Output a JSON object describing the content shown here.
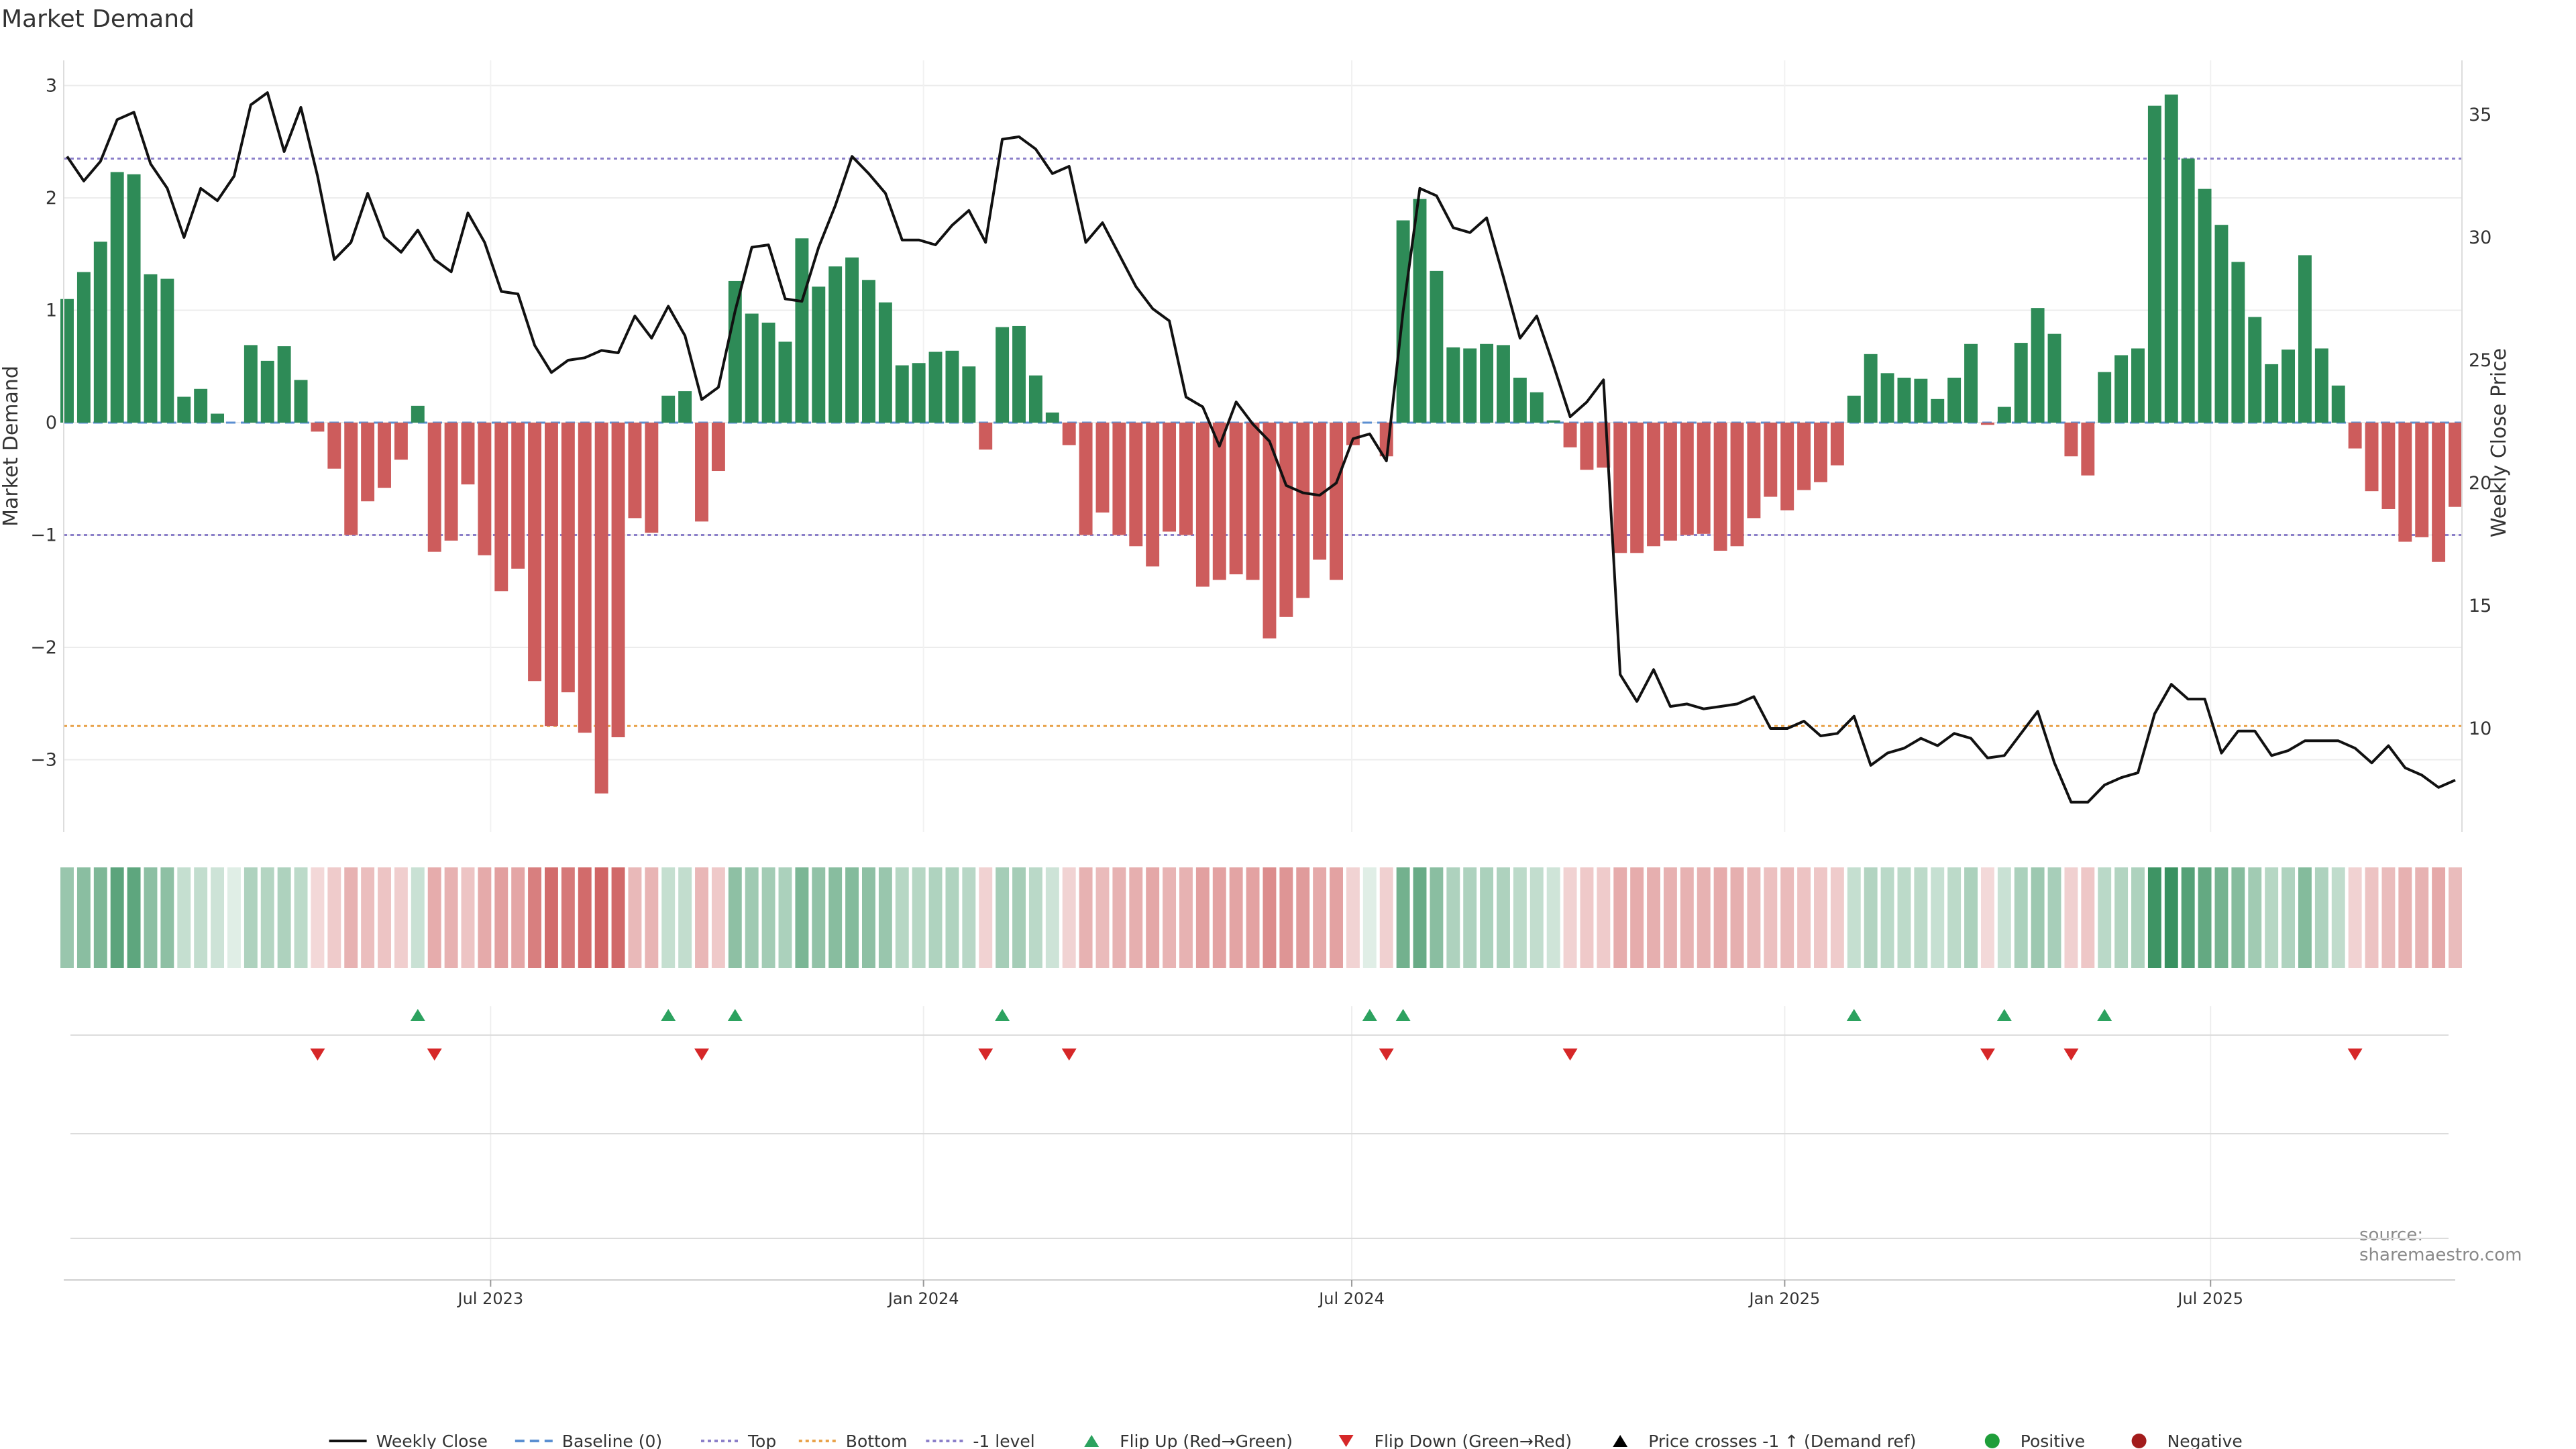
{
  "page": {
    "title": "Market Demand",
    "source": "source: sharemaestro.com"
  },
  "colors": {
    "positive_bar": "#2e8b57",
    "negative_bar": "#cd5c5c",
    "price": "#111111",
    "top_line": "#8b7fc9",
    "bottom_line": "#e8a24a",
    "minus1_line": "#8b7fc9",
    "baseline": "#5b8fd1",
    "flip_up": "#2ca25f",
    "flip_down": "#d62728",
    "legend_positive": "#1f9e3a",
    "legend_negative": "#a31c1c"
  },
  "chart_data": {
    "type": "bar",
    "title": "Market Demand",
    "ylabel": "Market Demand",
    "y2label": "Weekly Close Price",
    "ylim": [
      -3.7,
      3.1
    ],
    "y2lim": [
      6,
      37
    ],
    "yticks": [
      3,
      2,
      1,
      0,
      -1,
      -2,
      -3
    ],
    "y2ticks": [
      35,
      30,
      25,
      20,
      15,
      10
    ],
    "x_start": "2023-01-02",
    "x_end": "2025-10-13",
    "x_tick_labels": [
      {
        "date": "2023-07-01",
        "label": "Jul 2023"
      },
      {
        "date": "2024-01-01",
        "label": "Jan 2024"
      },
      {
        "date": "2024-07-01",
        "label": "Jul 2024"
      },
      {
        "date": "2025-01-01",
        "label": "Jan 2025"
      },
      {
        "date": "2025-07-01",
        "label": "Jul 2025"
      }
    ],
    "reference_lines": {
      "top": 2.35,
      "bottom": -2.7,
      "minus1": -1.0,
      "baseline": 0
    },
    "demand": [
      1.1,
      1.34,
      1.61,
      2.23,
      2.21,
      1.32,
      1.28,
      0.23,
      0.3,
      0.08,
      0.0,
      0.69,
      0.55,
      0.68,
      0.38,
      -0.08,
      -0.41,
      -1.0,
      -0.7,
      -0.58,
      -0.33,
      0.15,
      -1.15,
      -1.05,
      -0.55,
      -1.18,
      -1.5,
      -1.3,
      -2.3,
      -2.7,
      -2.4,
      -2.76,
      -3.3,
      -2.8,
      -0.85,
      -0.98,
      0.24,
      0.28,
      -0.88,
      -0.43,
      1.26,
      0.97,
      0.89,
      0.72,
      1.64,
      1.21,
      1.39,
      1.47,
      1.27,
      1.07,
      0.51,
      0.53,
      0.63,
      0.64,
      0.5,
      -0.24,
      0.85,
      0.86,
      0.42,
      0.09,
      -0.2,
      -1.0,
      -0.8,
      -1.0,
      -1.1,
      -1.28,
      -0.97,
      -1.0,
      -1.46,
      -1.4,
      -1.35,
      -1.4,
      -1.92,
      -1.73,
      -1.56,
      -1.22,
      -1.4,
      -0.2,
      0.0,
      -0.3,
      1.8,
      1.99,
      1.35,
      0.67,
      0.66,
      0.7,
      0.69,
      0.4,
      0.27,
      0.02,
      -0.22,
      -0.42,
      -0.4,
      -1.16,
      -1.16,
      -1.1,
      -1.05,
      -1.0,
      -0.99,
      -1.14,
      -1.1,
      -0.85,
      -0.66,
      -0.78,
      -0.6,
      -0.53,
      -0.38,
      0.24,
      0.61,
      0.44,
      0.4,
      0.39,
      0.21,
      0.4,
      0.7,
      -0.02,
      0.14,
      0.71,
      1.02,
      0.79,
      -0.3,
      -0.47,
      0.45,
      0.6,
      0.66,
      2.82,
      2.92,
      2.35,
      2.08,
      1.76,
      1.43,
      0.94,
      0.52,
      0.65,
      1.49,
      0.66,
      0.33,
      -0.23,
      -0.61,
      -0.77,
      -1.06,
      -1.02,
      -1.24,
      -0.75
    ],
    "price": [
      33.3,
      32.3,
      33.1,
      34.8,
      35.1,
      33.0,
      32.0,
      30.0,
      32.0,
      31.5,
      32.5,
      35.4,
      35.9,
      33.5,
      35.3,
      32.5,
      29.1,
      29.8,
      31.8,
      30.0,
      29.4,
      30.3,
      29.1,
      28.6,
      31.0,
      29.8,
      27.8,
      27.7,
      25.6,
      24.5,
      25.0,
      25.1,
      25.4,
      25.3,
      26.8,
      25.9,
      27.2,
      26.0,
      23.4,
      23.9,
      27.0,
      29.6,
      29.7,
      27.5,
      27.4,
      29.6,
      31.3,
      33.3,
      32.6,
      31.8,
      29.9,
      29.9,
      29.7,
      30.5,
      31.1,
      29.8,
      34.0,
      34.1,
      33.6,
      32.6,
      32.9,
      29.8,
      30.6,
      29.3,
      28.0,
      27.1,
      26.6,
      23.5,
      23.1,
      21.5,
      23.3,
      22.4,
      21.7,
      19.9,
      19.6,
      19.5,
      20.0,
      21.8,
      22.0,
      20.9,
      27.0,
      32.0,
      31.7,
      30.4,
      30.2,
      30.8,
      28.4,
      25.9,
      26.8,
      24.8,
      22.7,
      23.3,
      24.2,
      12.2,
      11.1,
      12.4,
      10.9,
      11.0,
      10.8,
      10.9,
      11.0,
      11.3,
      10.0,
      10.0,
      10.3,
      9.7,
      9.8,
      10.5,
      8.5,
      9.0,
      9.2,
      9.6,
      9.3,
      9.8,
      9.6,
      8.8,
      8.9,
      9.8,
      10.7,
      8.6,
      7.0,
      7.0,
      7.7,
      8.0,
      8.2,
      10.6,
      11.8,
      11.2,
      11.2,
      9.0,
      9.9,
      9.9,
      8.9,
      9.1,
      9.5,
      9.5,
      9.5,
      9.2,
      8.6,
      9.3,
      8.4,
      8.1,
      7.6,
      7.9
    ],
    "flip_up": [
      21,
      36,
      40,
      56,
      78,
      80,
      107,
      116,
      122
    ],
    "flip_down": [
      15,
      22,
      38,
      55,
      60,
      79,
      90,
      115,
      120,
      137
    ]
  },
  "legend": [
    {
      "label": "Weekly Close",
      "kind": "line",
      "color": "#111111",
      "dash": ""
    },
    {
      "label": "Baseline (0)",
      "kind": "line",
      "color": "#5b8fd1",
      "dash": "14,8"
    },
    {
      "label": "Top",
      "kind": "line",
      "color": "#8b7fc9",
      "dash": "5,5"
    },
    {
      "label": "Bottom",
      "kind": "line",
      "color": "#e8a24a",
      "dash": "5,5"
    },
    {
      "label": "-1 level",
      "kind": "line",
      "color": "#8b7fc9",
      "dash": "5,5"
    },
    {
      "label": "Flip Up (Red→Green)",
      "kind": "tri-up",
      "color": "#2ca25f"
    },
    {
      "label": "Flip Down (Green→Red)",
      "kind": "tri-down",
      "color": "#d62728"
    },
    {
      "label": "Price crosses -1 ↑ (Demand ref)",
      "kind": "tri-up",
      "color": "#000000"
    },
    {
      "label": "Positive",
      "kind": "dot",
      "color": "#1f9e3a"
    },
    {
      "label": "Negative",
      "kind": "dot",
      "color": "#a31c1c"
    }
  ]
}
